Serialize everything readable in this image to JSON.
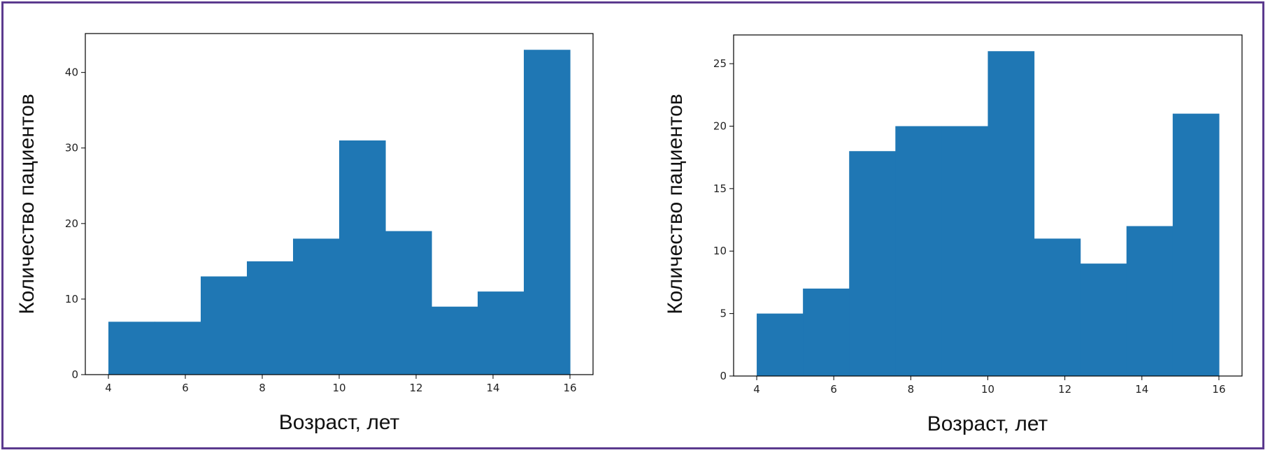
{
  "chart_data": [
    {
      "type": "bar",
      "title": "",
      "xlabel": "Возраст, лет",
      "ylabel": "Количество пациентов",
      "bin_edges": [
        4,
        5.2,
        6.4,
        7.6,
        8.8,
        10,
        11.2,
        12.4,
        13.6,
        14.8,
        16
      ],
      "values": [
        7,
        7,
        13,
        15,
        18,
        31,
        19,
        9,
        11,
        43
      ],
      "xlim": [
        3.4,
        16.6
      ],
      "ylim": [
        0,
        45.15
      ],
      "xticks": [
        "4",
        "6",
        "8",
        "10",
        "12",
        "14",
        "16"
      ],
      "yticks": [
        "0",
        "10",
        "20",
        "30",
        "40"
      ],
      "grid": false,
      "bar_color": "#1f77b4"
    },
    {
      "type": "bar",
      "title": "",
      "xlabel": "Возраст, лет",
      "ylabel": "Количество пациентов",
      "bin_edges": [
        4,
        5.2,
        6.4,
        7.6,
        8.8,
        10,
        11.2,
        12.4,
        13.6,
        14.8,
        16
      ],
      "values": [
        5,
        7,
        18,
        20,
        20,
        26,
        11,
        9,
        12,
        21
      ],
      "xlim": [
        3.4,
        16.6
      ],
      "ylim": [
        0,
        27.3
      ],
      "xticks": [
        "4",
        "6",
        "8",
        "10",
        "12",
        "14",
        "16"
      ],
      "yticks": [
        "0",
        "5",
        "10",
        "15",
        "20",
        "25"
      ],
      "grid": false,
      "bar_color": "#1f77b4"
    }
  ]
}
